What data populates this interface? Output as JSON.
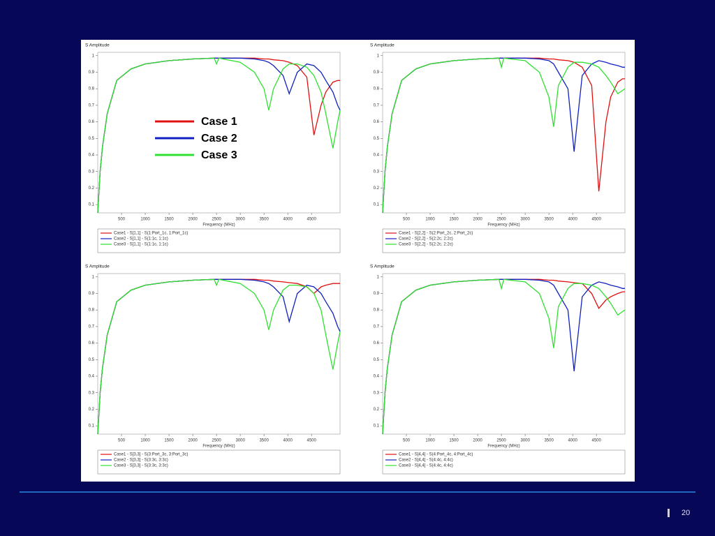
{
  "slide": {
    "page_number": "20"
  },
  "legend_overlay": [
    {
      "name": "Case 1",
      "color": "#e01010"
    },
    {
      "name": "Case 2",
      "color": "#1020c0"
    },
    {
      "name": "Case 3",
      "color": "#30e030"
    }
  ],
  "chart_data": [
    {
      "type": "line",
      "title": "S Amplitude",
      "x_label": "Frequency (MHz)",
      "x": [
        0,
        50,
        100,
        200,
        400,
        700,
        1000,
        1500,
        2000,
        2450,
        2500,
        2550,
        3000,
        3300,
        3500,
        3600,
        3700,
        3900,
        4030,
        4200,
        4400,
        4550,
        4700,
        4800,
        4950,
        5050,
        5100
      ],
      "xlim": [
        0,
        5100
      ],
      "ylim": [
        0.05,
        1.02
      ],
      "xticks": [
        500,
        1000,
        1500,
        2000,
        2500,
        3000,
        3500,
        4000,
        4500
      ],
      "yticks": [
        0.1,
        0.2,
        0.3,
        0.4,
        0.5,
        0.6,
        0.7,
        0.8,
        0.9,
        1
      ],
      "grid": false,
      "series": [
        {
          "name": "Case1 - S[1,1] - S(1:Port_1c, 1:Port_1c)",
          "color": "#e01010",
          "values": [
            0.05,
            0.3,
            0.45,
            0.65,
            0.85,
            0.92,
            0.95,
            0.97,
            0.98,
            0.985,
            0.985,
            0.985,
            0.985,
            0.985,
            0.98,
            0.98,
            0.975,
            0.97,
            0.96,
            0.94,
            0.87,
            0.52,
            0.7,
            0.78,
            0.84,
            0.85,
            0.85
          ]
        },
        {
          "name": "Case2 - S[1,1] - S(1:1c, 1:1c)",
          "color": "#1020c0",
          "values": [
            0.05,
            0.3,
            0.45,
            0.65,
            0.85,
            0.92,
            0.95,
            0.97,
            0.98,
            0.985,
            0.985,
            0.985,
            0.985,
            0.98,
            0.97,
            0.96,
            0.94,
            0.88,
            0.77,
            0.9,
            0.95,
            0.94,
            0.9,
            0.85,
            0.78,
            0.7,
            0.67
          ]
        },
        {
          "name": "Case3 - S[1,1] - S(1:1c, 1:1c)",
          "color": "#30e030",
          "values": [
            0.05,
            0.3,
            0.45,
            0.65,
            0.85,
            0.92,
            0.95,
            0.97,
            0.98,
            0.985,
            0.95,
            0.985,
            0.96,
            0.9,
            0.8,
            0.67,
            0.8,
            0.92,
            0.95,
            0.95,
            0.93,
            0.88,
            0.78,
            0.65,
            0.44,
            0.6,
            0.67
          ]
        }
      ]
    },
    {
      "type": "line",
      "title": "S Amplitude",
      "x_label": "Frequency (MHz)",
      "x": [
        0,
        50,
        100,
        200,
        400,
        700,
        1000,
        1500,
        2000,
        2450,
        2500,
        2550,
        3000,
        3300,
        3500,
        3600,
        3700,
        3900,
        4030,
        4200,
        4400,
        4550,
        4700,
        4800,
        4950,
        5050,
        5100
      ],
      "xlim": [
        0,
        5100
      ],
      "ylim": [
        0.05,
        1.02
      ],
      "xticks": [
        500,
        1000,
        1500,
        2000,
        2500,
        3000,
        3500,
        4000,
        4500
      ],
      "yticks": [
        0.1,
        0.2,
        0.3,
        0.4,
        0.5,
        0.6,
        0.7,
        0.8,
        0.9,
        1
      ],
      "grid": false,
      "series": [
        {
          "name": "Case1 - S[2,2] - S(2:Port_2c, 2:Port_2c)",
          "color": "#e01010",
          "values": [
            0.05,
            0.3,
            0.45,
            0.65,
            0.85,
            0.92,
            0.95,
            0.97,
            0.98,
            0.985,
            0.985,
            0.985,
            0.985,
            0.985,
            0.98,
            0.98,
            0.975,
            0.97,
            0.96,
            0.93,
            0.82,
            0.18,
            0.6,
            0.75,
            0.84,
            0.86,
            0.86
          ]
        },
        {
          "name": "Case2 - S[2,2] - S(2:2c, 2:2c)",
          "color": "#1020c0",
          "values": [
            0.05,
            0.3,
            0.45,
            0.65,
            0.85,
            0.92,
            0.95,
            0.97,
            0.98,
            0.985,
            0.985,
            0.985,
            0.985,
            0.98,
            0.97,
            0.95,
            0.9,
            0.8,
            0.42,
            0.88,
            0.95,
            0.97,
            0.96,
            0.95,
            0.94,
            0.93,
            0.93
          ]
        },
        {
          "name": "Case3 - S[2,2] - S(2:2c, 2:2c)",
          "color": "#30e030",
          "values": [
            0.05,
            0.3,
            0.45,
            0.65,
            0.85,
            0.92,
            0.95,
            0.97,
            0.98,
            0.985,
            0.93,
            0.985,
            0.97,
            0.9,
            0.75,
            0.57,
            0.82,
            0.93,
            0.96,
            0.96,
            0.95,
            0.93,
            0.88,
            0.84,
            0.77,
            0.79,
            0.8
          ]
        }
      ]
    },
    {
      "type": "line",
      "title": "S Amplitude",
      "x_label": "Frequency (MHz)",
      "x": [
        0,
        50,
        100,
        200,
        400,
        700,
        1000,
        1500,
        2000,
        2450,
        2500,
        2550,
        3000,
        3300,
        3500,
        3600,
        3700,
        3900,
        4030,
        4200,
        4400,
        4550,
        4700,
        4800,
        4950,
        5050,
        5100
      ],
      "xlim": [
        0,
        5100
      ],
      "ylim": [
        0.05,
        1.02
      ],
      "xticks": [
        500,
        1000,
        1500,
        2000,
        2500,
        3000,
        3500,
        4000,
        4500
      ],
      "yticks": [
        0.1,
        0.2,
        0.3,
        0.4,
        0.5,
        0.6,
        0.7,
        0.8,
        0.9,
        1
      ],
      "grid": false,
      "series": [
        {
          "name": "Case1 - S[3,3] - S(3:Port_3c, 3:Port_3c)",
          "color": "#e01010",
          "values": [
            0.05,
            0.3,
            0.45,
            0.65,
            0.85,
            0.92,
            0.95,
            0.97,
            0.98,
            0.985,
            0.985,
            0.985,
            0.985,
            0.985,
            0.98,
            0.98,
            0.975,
            0.97,
            0.965,
            0.96,
            0.94,
            0.9,
            0.94,
            0.95,
            0.96,
            0.96,
            0.96
          ]
        },
        {
          "name": "Case2 - S[3,3] - S(3:3c, 3:3c)",
          "color": "#1020c0",
          "values": [
            0.05,
            0.3,
            0.45,
            0.65,
            0.85,
            0.92,
            0.95,
            0.97,
            0.98,
            0.985,
            0.985,
            0.985,
            0.985,
            0.98,
            0.97,
            0.96,
            0.94,
            0.88,
            0.73,
            0.9,
            0.95,
            0.94,
            0.9,
            0.85,
            0.78,
            0.7,
            0.67
          ]
        },
        {
          "name": "Case3 - S[3,3] - S(3:3c, 3:3c)",
          "color": "#30e030",
          "values": [
            0.05,
            0.3,
            0.45,
            0.65,
            0.85,
            0.92,
            0.95,
            0.97,
            0.98,
            0.985,
            0.95,
            0.985,
            0.96,
            0.9,
            0.8,
            0.68,
            0.8,
            0.92,
            0.95,
            0.95,
            0.94,
            0.9,
            0.8,
            0.65,
            0.44,
            0.6,
            0.67
          ]
        }
      ]
    },
    {
      "type": "line",
      "title": "S Amplitude",
      "x_label": "Frequency (MHz)",
      "x": [
        0,
        50,
        100,
        200,
        400,
        700,
        1000,
        1500,
        2000,
        2450,
        2500,
        2550,
        3000,
        3300,
        3500,
        3600,
        3700,
        3900,
        4030,
        4200,
        4400,
        4550,
        4700,
        4800,
        4950,
        5050,
        5100
      ],
      "xlim": [
        0,
        5100
      ],
      "ylim": [
        0.05,
        1.02
      ],
      "xticks": [
        500,
        1000,
        1500,
        2000,
        2500,
        3000,
        3500,
        4000,
        4500
      ],
      "yticks": [
        0.1,
        0.2,
        0.3,
        0.4,
        0.5,
        0.6,
        0.7,
        0.8,
        0.9,
        1
      ],
      "grid": false,
      "series": [
        {
          "name": "Case1 - S[4,4] - S(4:Port_4c, 4:Port_4c)",
          "color": "#e01010",
          "values": [
            0.05,
            0.3,
            0.45,
            0.65,
            0.85,
            0.92,
            0.95,
            0.97,
            0.98,
            0.985,
            0.985,
            0.985,
            0.985,
            0.985,
            0.98,
            0.98,
            0.975,
            0.97,
            0.965,
            0.96,
            0.9,
            0.81,
            0.86,
            0.88,
            0.9,
            0.91,
            0.91
          ]
        },
        {
          "name": "Case2 - S[4,4] - S(4:4c, 4:4c)",
          "color": "#1020c0",
          "values": [
            0.05,
            0.3,
            0.45,
            0.65,
            0.85,
            0.92,
            0.95,
            0.97,
            0.98,
            0.985,
            0.985,
            0.985,
            0.985,
            0.98,
            0.97,
            0.95,
            0.9,
            0.8,
            0.43,
            0.88,
            0.95,
            0.97,
            0.96,
            0.95,
            0.94,
            0.93,
            0.93
          ]
        },
        {
          "name": "Case3 - S[4,4] - S(4:4c, 4:4c)",
          "color": "#30e030",
          "values": [
            0.05,
            0.3,
            0.45,
            0.65,
            0.85,
            0.92,
            0.95,
            0.97,
            0.98,
            0.985,
            0.93,
            0.985,
            0.97,
            0.9,
            0.75,
            0.57,
            0.82,
            0.93,
            0.96,
            0.96,
            0.95,
            0.93,
            0.88,
            0.84,
            0.77,
            0.79,
            0.8
          ]
        }
      ]
    }
  ]
}
